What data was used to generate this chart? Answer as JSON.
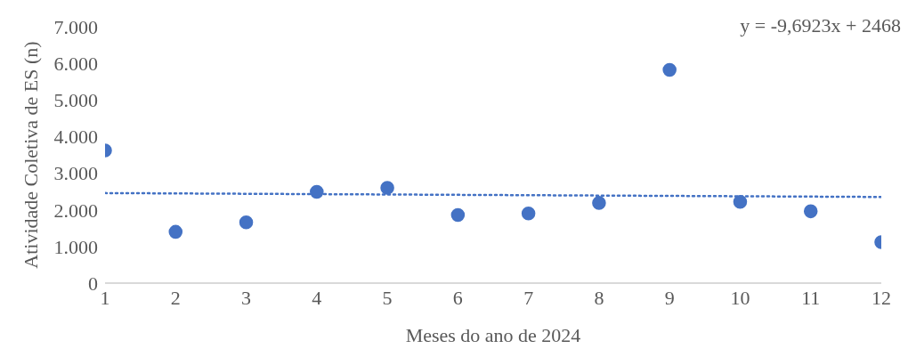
{
  "chart_data": {
    "type": "scatter",
    "xlabel": "Meses do ano de 2024",
    "ylabel": "Atividade Coletiva de ES  (n)",
    "x": [
      1,
      2,
      3,
      4,
      5,
      6,
      7,
      8,
      9,
      10,
      11,
      12
    ],
    "series": [
      {
        "color": "#4472c4",
        "values": [
          3620,
          1400,
          1660,
          2490,
          2600,
          1860,
          1900,
          2190,
          5820,
          2220,
          1960,
          1120
        ]
      },
      {
        "type": "line",
        "color": "#4472c4",
        "line_style": "dotted",
        "marker": "none",
        "x": [
          1,
          12
        ],
        "values": [
          2458,
          2352
        ]
      }
    ],
    "xlim": [
      1,
      12
    ],
    "xticks": [
      1,
      2,
      3,
      4,
      5,
      6,
      7,
      8,
      9,
      10,
      11,
      12
    ],
    "ylim": [
      0,
      7000
    ],
    "yticks": [
      0,
      {
        "value": 1000,
        "label": "1.000"
      },
      {
        "value": 2000,
        "label": "2.000"
      },
      {
        "value": 3000,
        "label": "3.000"
      },
      {
        "value": 4000,
        "label": "4.000"
      },
      {
        "value": 5000,
        "label": "5.000"
      },
      {
        "value": 6000,
        "label": "6.000"
      },
      {
        "value": 7000,
        "label": "7.000"
      }
    ],
    "annotations": [
      "y = -9,6923x + 2468"
    ],
    "grid": false,
    "legend": false,
    "marker": "circle"
  }
}
